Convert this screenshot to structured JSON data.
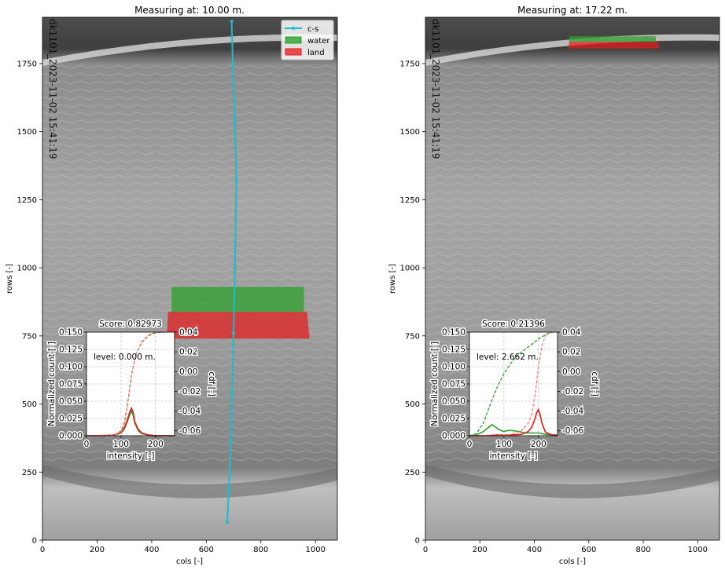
{
  "chart_data": [
    {
      "type": "image-overlay",
      "title": "Measuring at: 10.00 m.",
      "xlabel": "cols [-]",
      "ylabel": "rows [-]",
      "xlim": [
        0,
        1080
      ],
      "ylim": [
        0,
        1920
      ],
      "xticks": [
        0,
        200,
        400,
        600,
        800,
        1000
      ],
      "yticks": [
        0,
        250,
        500,
        750,
        1000,
        1250,
        1500,
        1750
      ],
      "legend": {
        "placement": "top-right",
        "entries": [
          {
            "label": "c-s",
            "color": "#17becf",
            "kind": "line"
          },
          {
            "label": "water",
            "color": "#2ca02c",
            "kind": "patch"
          },
          {
            "label": "land",
            "color": "#e41a1c",
            "kind": "patch"
          }
        ]
      },
      "cross_section": {
        "color": "#17becf",
        "points": [
          [
            676,
            65
          ],
          [
            683,
            185
          ],
          [
            689,
            360
          ],
          [
            695,
            540
          ],
          [
            700,
            760
          ],
          [
            705,
            1000
          ],
          [
            710,
            1320
          ],
          [
            705,
            1540
          ],
          [
            697,
            1750
          ],
          [
            693,
            1905
          ]
        ]
      },
      "water_polygon": [
        [
          473,
          930
        ],
        [
          958,
          930
        ],
        [
          958,
          838
        ],
        [
          473,
          838
        ]
      ],
      "land_polygon": [
        [
          460,
          838
        ],
        [
          969,
          838
        ],
        [
          978,
          740
        ],
        [
          455,
          740
        ]
      ],
      "watermark": "dk1101_2023-11-02 15:41:19",
      "inset": {
        "score_label": "Score: 0.82973",
        "level_label": "level: 0.000 m.",
        "xlabel": "intensity [-]",
        "ylabel": "Normalized count [-]",
        "ylabel_right": "cdf [-]",
        "xlim": [
          0,
          255
        ],
        "ylim": [
          0,
          0.15
        ],
        "ylim_right": [
          -0.065,
          0.04
        ],
        "xticks": [
          0,
          100,
          200
        ],
        "yticks": [
          "0.000",
          "0.025",
          "0.050",
          "0.075",
          "0.100",
          "0.125",
          "0.150"
        ],
        "yticks_right": [
          "0.04",
          "0.02",
          "0.00",
          "-0.02",
          "-0.04",
          "-0.06"
        ],
        "series": [
          {
            "name": "water",
            "color": "#2ca02c",
            "style": "solid",
            "x": [
              0,
              40,
              80,
              100,
              110,
              118,
              125,
              130,
              135,
              140,
              150,
              160,
              180,
              200,
              255
            ],
            "values": [
              0,
              0,
              0.001,
              0.004,
              0.01,
              0.02,
              0.03,
              0.036,
              0.03,
              0.018,
              0.007,
              0.003,
              0.001,
              0,
              0
            ]
          },
          {
            "name": "land",
            "color": "#e41a1c",
            "style": "solid",
            "x": [
              0,
              40,
              80,
              100,
              110,
              118,
              125,
              130,
              135,
              140,
              150,
              160,
              180,
              200,
              255
            ],
            "values": [
              0,
              0,
              0.001,
              0.005,
              0.012,
              0.023,
              0.034,
              0.04,
              0.034,
              0.02,
              0.009,
              0.004,
              0.001,
              0,
              0
            ]
          },
          {
            "name": "water",
            "color": "#2ca02c",
            "style": "dashed",
            "x": [
              0,
              80,
              100,
              110,
              120,
              128,
              135,
              145,
              160,
              180,
              200,
              220,
              230
            ],
            "values": [
              0,
              0.001,
              0.007,
              0.02,
              0.05,
              0.08,
              0.1,
              0.12,
              0.135,
              0.145,
              0.149,
              0.15,
              0.15
            ]
          },
          {
            "name": "land",
            "color": "#ff7f7f",
            "style": "dashed",
            "x": [
              0,
              80,
              100,
              110,
              120,
              128,
              135,
              145,
              160,
              180,
              200,
              220,
              230
            ],
            "values": [
              0,
              0.001,
              0.006,
              0.018,
              0.048,
              0.078,
              0.1,
              0.12,
              0.136,
              0.146,
              0.15,
              0.15,
              0.15
            ]
          }
        ]
      }
    },
    {
      "type": "image-overlay",
      "title": "Measuring at: 17.22 m.",
      "xlabel": "cols [-]",
      "ylabel": "rows [-]",
      "xlim": [
        0,
        1080
      ],
      "ylim": [
        0,
        1920
      ],
      "xticks": [
        0,
        200,
        400,
        600,
        800,
        1000
      ],
      "yticks": [
        0,
        250,
        500,
        750,
        1000,
        1250,
        1500,
        1750
      ],
      "water_polygon": [
        [
          528,
          1850
        ],
        [
          846,
          1850
        ],
        [
          846,
          1830
        ],
        [
          528,
          1830
        ]
      ],
      "land_polygon": [
        [
          528,
          1830
        ],
        [
          854,
          1830
        ],
        [
          859,
          1805
        ],
        [
          525,
          1805
        ]
      ],
      "watermark": "dk1101_2023-11-02 15:41:19",
      "inset": {
        "score_label": "Score: 0.21396",
        "level_label": "level: 2.662 m.",
        "xlabel": "intensity [-]",
        "ylabel": "Normalized count [-]",
        "ylabel_right": "cdf [-]",
        "xlim": [
          0,
          255
        ],
        "ylim": [
          0,
          0.15
        ],
        "ylim_right": [
          -0.065,
          0.04
        ],
        "xticks": [
          0,
          100,
          200
        ],
        "yticks": [
          "0.000",
          "0.025",
          "0.050",
          "0.075",
          "0.100",
          "0.125",
          "0.150"
        ],
        "yticks_right": [
          "0.04",
          "0.02",
          "0.00",
          "-0.02",
          "-0.04",
          "-0.06"
        ],
        "series": [
          {
            "name": "water",
            "color": "#2ca02c",
            "style": "solid",
            "x": [
              0,
              20,
              40,
              55,
              65,
              75,
              85,
              100,
              115,
              130,
              145,
              160,
              180,
              200,
              220,
              255
            ],
            "values": [
              0,
              0.001,
              0.006,
              0.012,
              0.016,
              0.013,
              0.009,
              0.006,
              0.008,
              0.007,
              0.006,
              0.004,
              0.004,
              0.004,
              0.002,
              0.001
            ]
          },
          {
            "name": "land",
            "color": "#e41a1c",
            "style": "solid",
            "x": [
              0,
              40,
              80,
              120,
              150,
              170,
              180,
              190,
              195,
              200,
              205,
              210,
              220,
              240,
              255
            ],
            "values": [
              0,
              0,
              0.001,
              0.001,
              0.002,
              0.006,
              0.012,
              0.025,
              0.034,
              0.038,
              0.03,
              0.018,
              0.005,
              0.001,
              0
            ]
          },
          {
            "name": "water",
            "color": "#2ca02c",
            "style": "dashed",
            "x": [
              0,
              20,
              40,
              60,
              80,
              100,
              120,
              140,
              160,
              180,
              200,
              220,
              240,
              250
            ],
            "values": [
              0,
              0.003,
              0.018,
              0.045,
              0.07,
              0.09,
              0.105,
              0.117,
              0.125,
              0.132,
              0.14,
              0.146,
              0.15,
              0.15
            ]
          },
          {
            "name": "land",
            "color": "#ff7f7f",
            "style": "dashed",
            "x": [
              0,
              80,
              120,
              150,
              170,
              180,
              190,
              200,
              210,
              220,
              230,
              245
            ],
            "values": [
              0,
              0,
              0.002,
              0.007,
              0.018,
              0.03,
              0.06,
              0.1,
              0.13,
              0.145,
              0.15,
              0.15
            ]
          }
        ]
      }
    }
  ]
}
